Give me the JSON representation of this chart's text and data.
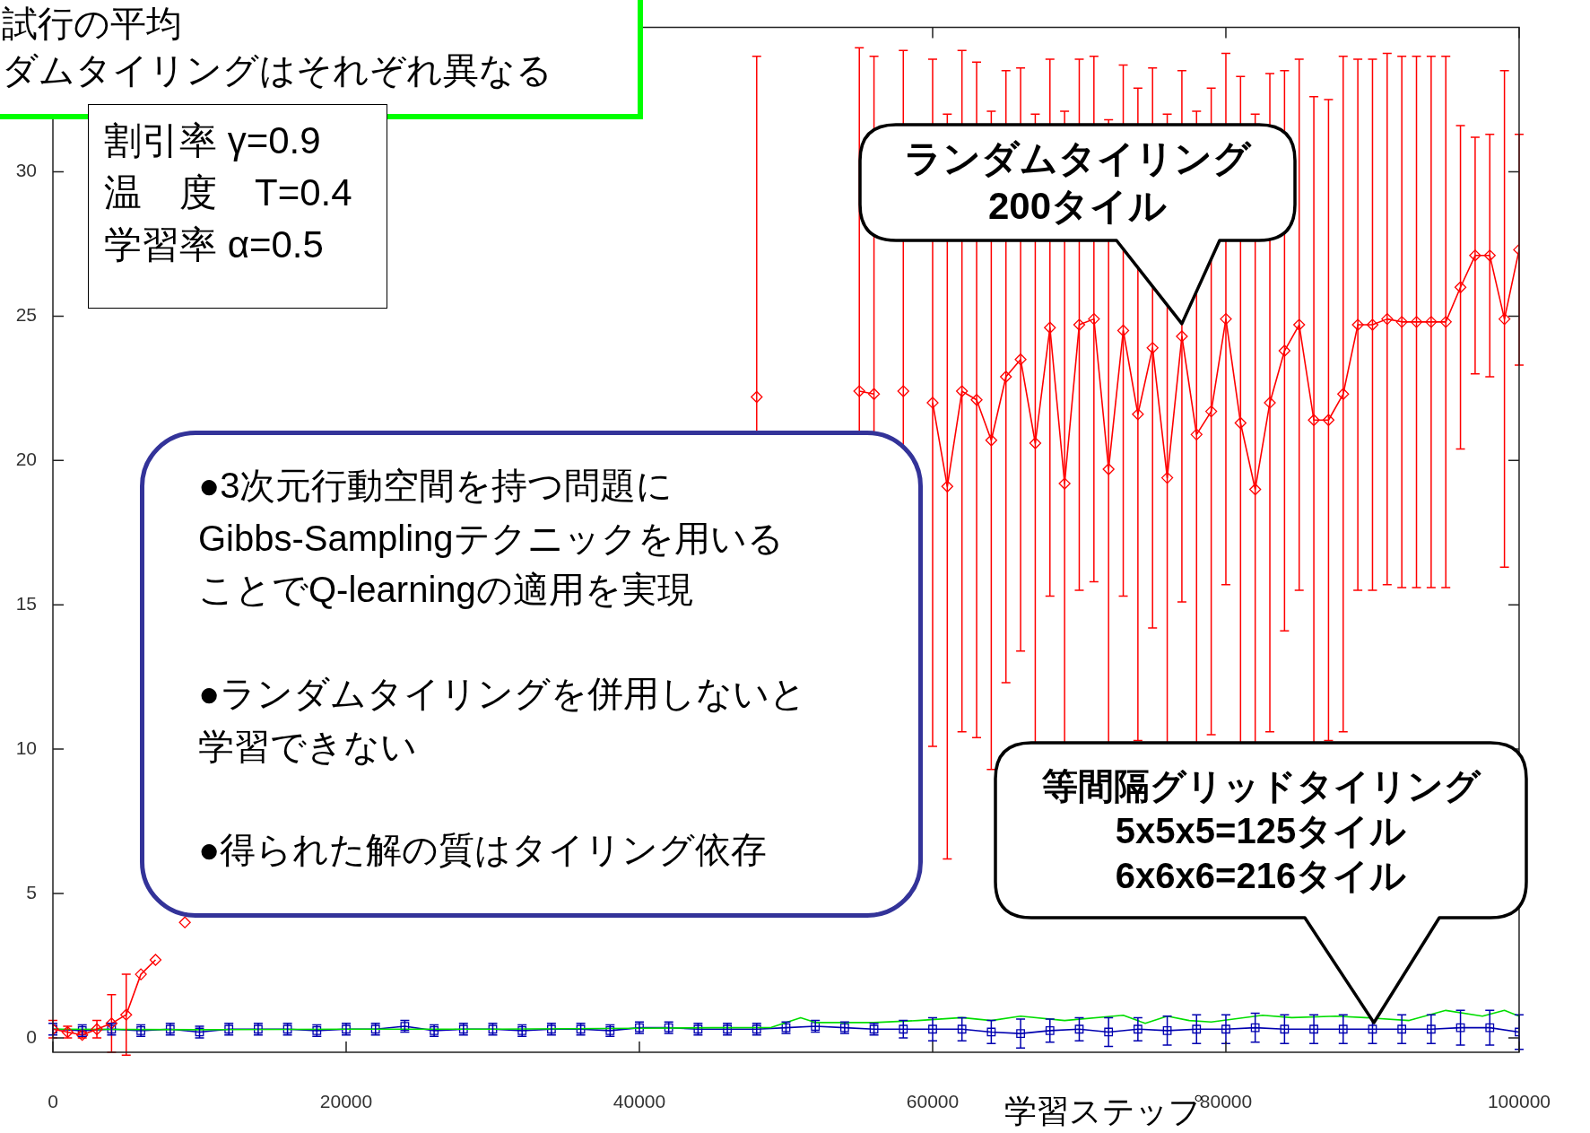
{
  "chart_data": {
    "type": "line",
    "xlabel": "学習ステップ",
    "annotations": [
      "試行の平均",
      "ダムタイリングはそれぞれ異なる",
      "割引率 γ=0.9",
      "温　度　T=0.4",
      "学習率 α=0.5",
      "●3次元行動空間を持つ問題に",
      "Gibbs-Samplingテクニックを用いる",
      "ことでQ-learningの適用を実現",
      "●ランダムタイリングを併用しないと",
      "学習できない",
      "●得られた解の質はタイリング依存",
      "等間隔グリッドタイリング\n5x5x5=125タイル\n6x6x6=216タイル",
      {
        "text": "ランダムタイリング\n200タイル",
        "x": 77000,
        "y": 24.3
      }
    ],
    "xlim": [
      0,
      100000
    ],
    "xticks": [
      0,
      20000,
      40000,
      60000,
      80000,
      100000
    ],
    "ylim": [
      -0.5,
      35
    ],
    "yticks": [
      0,
      5,
      10,
      15,
      20,
      25,
      30
    ],
    "grid": false,
    "legend": false,
    "series": [
      {
        "color": "#ff0000",
        "marker": "diamond",
        "x": [
          0,
          1000,
          2000,
          3000,
          4000,
          5000,
          6000,
          7000,
          8000,
          9000,
          10000,
          11000,
          12000,
          13000,
          14000,
          15000,
          16000,
          17000,
          18000,
          19000,
          20000,
          21000,
          22000,
          23000,
          24000,
          25000,
          26000,
          27000,
          28000,
          29000,
          30000,
          31000,
          32000,
          33000,
          34000,
          35000,
          36000,
          37000,
          38000,
          39000,
          40000,
          41000,
          42000,
          43000,
          44000,
          45000,
          46000,
          47000,
          48000,
          49000,
          50000,
          51000,
          52000,
          53000,
          54000,
          55000,
          56000,
          57000,
          58000,
          59000,
          60000,
          61000,
          62000,
          63000,
          64000,
          65000,
          66000,
          67000,
          68000,
          69000,
          70000,
          71000,
          72000,
          73000,
          74000,
          75000,
          76000,
          77000,
          78000,
          79000,
          80000,
          81000,
          82000,
          83000,
          84000,
          85000,
          86000,
          87000,
          88000,
          89000,
          90000,
          91000,
          92000,
          93000,
          94000,
          95000,
          96000,
          97000,
          98000,
          99000,
          100000
        ],
        "values": [
          0.3,
          0.2,
          0.1,
          0.3,
          0.5,
          0.8,
          2.2,
          2.7,
          null,
          4.0,
          null,
          null,
          null,
          null,
          null,
          null,
          null,
          null,
          null,
          null,
          null,
          null,
          null,
          null,
          null,
          null,
          null,
          null,
          null,
          null,
          null,
          null,
          null,
          null,
          null,
          null,
          null,
          null,
          null,
          null,
          null,
          null,
          null,
          null,
          null,
          null,
          null,
          null,
          22.2,
          null,
          null,
          null,
          null,
          null,
          null,
          22.4,
          22.3,
          null,
          22.4,
          null,
          22.0,
          19.1,
          22.4,
          22.1,
          20.7,
          22.9,
          23.5,
          20.6,
          24.6,
          19.2,
          24.7,
          24.9,
          19.7,
          24.5,
          21.6,
          23.9,
          19.4,
          24.3,
          20.9,
          21.7,
          24.9,
          21.3,
          19.0,
          22.0,
          23.8,
          24.7,
          21.4,
          21.4,
          22.3,
          24.7,
          24.7,
          24.9,
          24.8,
          24.8,
          24.8,
          24.8,
          26.0,
          27.1,
          27.1,
          24.9,
          27.3
        ],
        "errors": [
          0.3,
          0.2,
          0.1,
          0.3,
          1.0,
          1.4,
          null,
          null,
          null,
          null,
          null,
          null,
          null,
          null,
          null,
          null,
          null,
          null,
          null,
          null,
          null,
          null,
          null,
          null,
          null,
          null,
          null,
          null,
          null,
          null,
          null,
          null,
          null,
          null,
          null,
          null,
          null,
          null,
          null,
          null,
          null,
          null,
          null,
          null,
          null,
          null,
          null,
          null,
          11.8,
          null,
          null,
          null,
          null,
          null,
          null,
          11.9,
          11.7,
          null,
          11.8,
          null,
          11.9,
          12.9,
          11.8,
          11.7,
          11.4,
          10.6,
          10.1,
          11.4,
          9.3,
          12.9,
          9.2,
          9.1,
          12.1,
          9.2,
          11.3,
          9.7,
          12.6,
          9.2,
          11.2,
          11.2,
          9.2,
          12.0,
          13.0,
          11.4,
          9.7,
          9.2,
          11.2,
          11.1,
          11.7,
          9.2,
          9.2,
          9.2,
          9.2,
          9.2,
          9.2,
          9.2,
          5.6,
          4.1,
          4.2,
          8.6,
          4.0
        ]
      },
      {
        "color": "#00dd00",
        "marker": "none",
        "x": [
          0,
          10000,
          20000,
          30000,
          40000,
          45000,
          49000,
          51000,
          52000,
          56000,
          59000,
          62000,
          64000,
          66000,
          69000,
          73000,
          74500,
          76000,
          77500,
          79000,
          82500,
          84500,
          87500,
          89500,
          92500,
          95000,
          97500,
          99000,
          100000
        ],
        "values": [
          0.3,
          0.28,
          0.3,
          0.3,
          0.33,
          0.35,
          0.36,
          0.7,
          0.53,
          0.53,
          0.6,
          0.7,
          0.6,
          0.75,
          0.6,
          0.78,
          0.5,
          0.75,
          0.6,
          0.55,
          0.78,
          0.7,
          0.75,
          0.7,
          0.6,
          0.95,
          0.75,
          0.95,
          0.75
        ]
      },
      {
        "color": "#0000b0",
        "marker": "square",
        "x": [
          0,
          2000,
          4000,
          6000,
          8000,
          10000,
          12000,
          14000,
          16000,
          18000,
          20000,
          22000,
          24000,
          26000,
          28000,
          30000,
          32000,
          34000,
          36000,
          38000,
          40000,
          42000,
          44000,
          46000,
          48000,
          50000,
          52000,
          54000,
          56000,
          58000,
          60000,
          62000,
          64000,
          66000,
          68000,
          70000,
          72000,
          74000,
          76000,
          78000,
          80000,
          82000,
          84000,
          86000,
          88000,
          90000,
          92000,
          94000,
          96000,
          98000,
          100000
        ],
        "values": [
          0.3,
          0.25,
          0.3,
          0.25,
          0.3,
          0.2,
          0.3,
          0.3,
          0.3,
          0.25,
          0.3,
          0.3,
          0.4,
          0.25,
          0.3,
          0.3,
          0.25,
          0.3,
          0.3,
          0.25,
          0.35,
          0.35,
          0.3,
          0.3,
          0.3,
          0.35,
          0.4,
          0.35,
          0.3,
          0.3,
          0.3,
          0.3,
          0.2,
          0.15,
          0.25,
          0.3,
          0.2,
          0.3,
          0.25,
          0.3,
          0.3,
          0.35,
          0.3,
          0.3,
          0.3,
          0.3,
          0.3,
          0.3,
          0.35,
          0.35,
          0.2
        ],
        "errors": [
          0.2,
          0.2,
          0.2,
          0.2,
          0.2,
          0.2,
          0.2,
          0.2,
          0.2,
          0.2,
          0.2,
          0.2,
          0.2,
          0.2,
          0.2,
          0.2,
          0.2,
          0.2,
          0.2,
          0.2,
          0.2,
          0.2,
          0.2,
          0.2,
          0.2,
          0.2,
          0.2,
          0.2,
          0.2,
          0.3,
          0.4,
          0.4,
          0.4,
          0.5,
          0.4,
          0.4,
          0.5,
          0.4,
          0.5,
          0.5,
          0.5,
          0.5,
          0.5,
          0.5,
          0.5,
          0.5,
          0.5,
          0.5,
          0.6,
          0.6,
          0.6
        ]
      }
    ]
  }
}
